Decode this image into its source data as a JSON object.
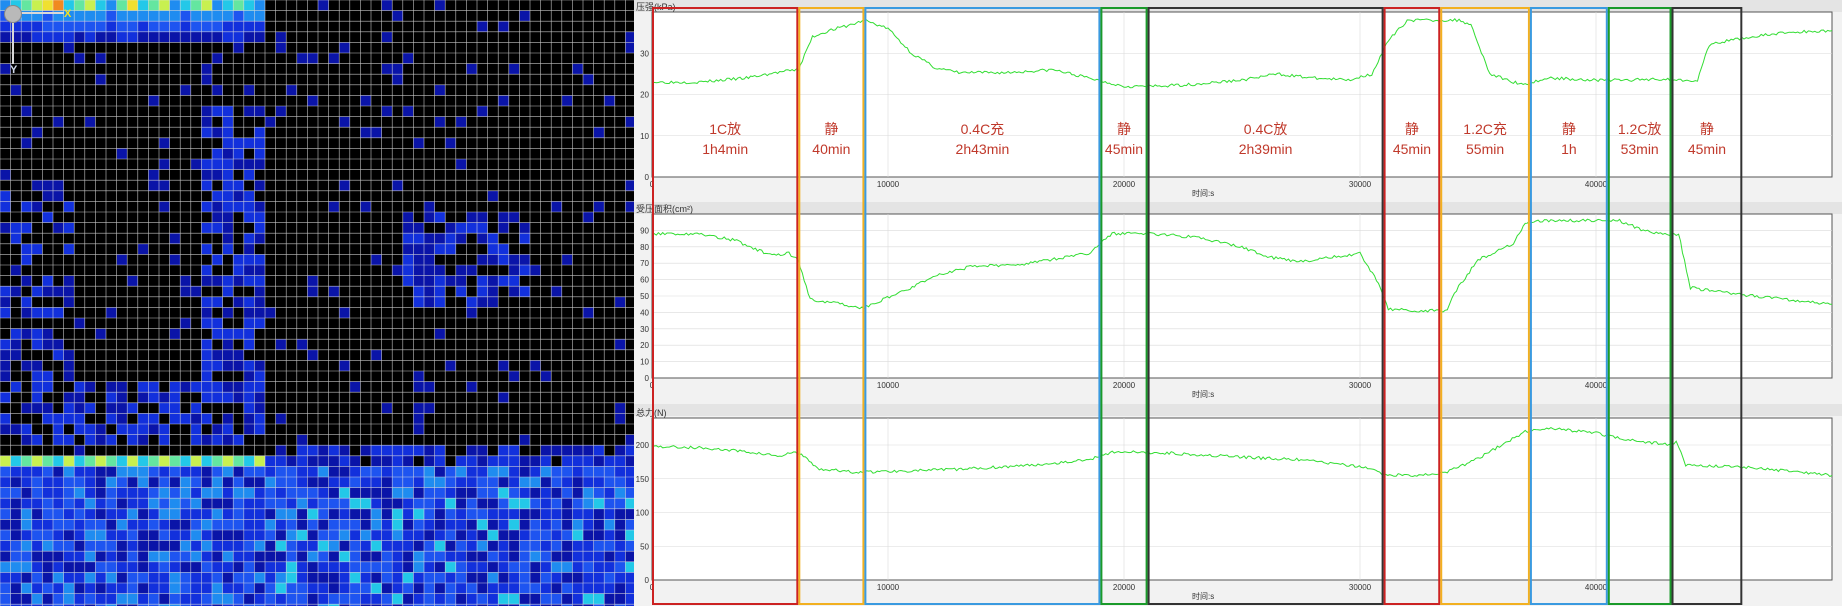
{
  "heatmap": {
    "axis_x_label": "X",
    "axis_y_label": "Y",
    "colors": {
      "empty": "#000000",
      "grid": "#e6e6e6",
      "scale": [
        "#0a14a8",
        "#1230dc",
        "#1e54f0",
        "#1f8cf0",
        "#23c8e8",
        "#64e6a0",
        "#c8f050",
        "#f0e030",
        "#f08a20"
      ]
    }
  },
  "chart_data": [
    {
      "type": "line",
      "title": "压强(kPa)",
      "xlabel": "时间:s",
      "xlim": [
        0,
        50000
      ],
      "ylim": [
        0,
        40
      ],
      "xticks": [
        10000,
        20000,
        30000,
        40000
      ],
      "xtick_labels": [
        "10000",
        "20000",
        "30000",
        "40000"
      ],
      "yticks": [
        0,
        10,
        20,
        30
      ],
      "ytick_labels": [
        "0",
        "10",
        "20",
        "30"
      ],
      "grid": true,
      "line_color": "#33dd33",
      "x": [
        0,
        2000,
        4000,
        5500,
        6200,
        6800,
        7500,
        8500,
        9000,
        10000,
        11000,
        12000,
        13000,
        15000,
        17000,
        18500,
        20000,
        21500,
        23000,
        25000,
        26500,
        28000,
        29500,
        30500,
        31200,
        32000,
        33000,
        34200,
        34700,
        35500,
        36500,
        37000,
        38000,
        40000,
        41500,
        42500,
        43500,
        44300,
        44800,
        46000,
        48000,
        50000
      ],
      "y": [
        23,
        23,
        24,
        25.5,
        26,
        34,
        35.5,
        37,
        38,
        36,
        30,
        26.5,
        25.3,
        25.3,
        26,
        24,
        22,
        22,
        22.5,
        23.5,
        25,
        24,
        23.5,
        25,
        33,
        38,
        38,
        38,
        37,
        25,
        23,
        22.5,
        24,
        23.5,
        23.5,
        23.8,
        23.5,
        23.5,
        32,
        33.5,
        35,
        35.5
      ]
    },
    {
      "type": "line",
      "title": "受压面积(cm²)",
      "xlabel": "时间:s",
      "xlim": [
        0,
        50000
      ],
      "ylim": [
        0,
        100
      ],
      "xticks": [
        10000,
        20000,
        30000,
        40000
      ],
      "xtick_labels": [
        "10000",
        "20000",
        "30000",
        "40000"
      ],
      "yticks": [
        0,
        10,
        20,
        30,
        40,
        50,
        60,
        70,
        80,
        90
      ],
      "ytick_labels": [
        "0",
        "10",
        "20",
        "30",
        "40",
        "50",
        "60",
        "70",
        "80",
        "90"
      ],
      "grid": true,
      "line_color": "#33dd33",
      "x": [
        0,
        2000,
        3500,
        5000,
        5800,
        6200,
        6700,
        7600,
        8800,
        9000,
        10500,
        12000,
        13500,
        15500,
        18500,
        19500,
        21000,
        23000,
        25000,
        26000,
        27500,
        29000,
        30000,
        30700,
        31200,
        32500,
        33700,
        34000,
        35000,
        36500,
        37000,
        38000,
        40000,
        41000,
        42000,
        43200,
        43500,
        44000,
        46000,
        48000,
        50000
      ],
      "y": [
        88,
        88,
        84,
        75,
        76,
        72,
        48,
        46,
        43,
        43,
        52,
        62,
        68,
        69,
        76,
        88,
        88,
        86,
        80,
        74,
        71,
        74,
        76,
        60,
        42,
        41,
        41,
        52,
        72,
        82,
        95,
        96,
        96,
        96,
        90,
        87,
        88,
        55,
        51,
        48,
        45
      ]
    },
    {
      "type": "line",
      "title": "总力(N)",
      "xlabel": "时间:s",
      "xlim": [
        0,
        50000
      ],
      "ylim": [
        0,
        240
      ],
      "xticks": [
        10000,
        20000,
        30000,
        40000
      ],
      "xtick_labels": [
        "10000",
        "20000",
        "30000",
        "40000"
      ],
      "yticks": [
        0,
        50,
        100,
        150,
        200
      ],
      "ytick_labels": [
        "0",
        "50",
        "100",
        "150",
        "200"
      ],
      "grid": true,
      "line_color": "#33dd33",
      "x": [
        0,
        2000,
        4000,
        5500,
        6000,
        6500,
        7000,
        8500,
        9000,
        11000,
        13000,
        16000,
        18500,
        19500,
        22000,
        25000,
        27500,
        29000,
        30500,
        31000,
        32500,
        33700,
        35000,
        36000,
        37000,
        38000,
        40000,
        41000,
        42000,
        43200,
        43400,
        43800,
        46000,
        48000,
        50000
      ],
      "y": [
        198,
        196,
        190,
        183,
        190,
        182,
        165,
        160,
        160,
        162,
        164,
        170,
        178,
        190,
        188,
        182,
        178,
        172,
        165,
        156,
        155,
        160,
        180,
        200,
        220,
        225,
        218,
        210,
        205,
        200,
        206,
        170,
        168,
        162,
        155
      ]
    }
  ],
  "phases": [
    {
      "label_line1": "1C放",
      "label_line2": "1h4min",
      "start": 0,
      "end": 6200,
      "color": "#cc2222"
    },
    {
      "label_line1": "静",
      "label_line2": "40min",
      "start": 6200,
      "end": 9000,
      "color": "#f2b020"
    },
    {
      "label_line1": "0.4C充",
      "label_line2": "2h43min",
      "start": 9000,
      "end": 19000,
      "color": "#3a9ae0"
    },
    {
      "label_line1": "静",
      "label_line2": "45min",
      "start": 19000,
      "end": 21000,
      "color": "#1a9a2a"
    },
    {
      "label_line1": "0.4C放",
      "label_line2": "2h39min",
      "start": 21000,
      "end": 31000,
      "color": "#333333"
    },
    {
      "label_line1": "静",
      "label_line2": "45min",
      "start": 31000,
      "end": 33400,
      "color": "#cc2222"
    },
    {
      "label_line1": "1.2C充",
      "label_line2": "55min",
      "start": 33400,
      "end": 37200,
      "color": "#f2b020"
    },
    {
      "label_line1": "静",
      "label_line2": "1h",
      "start": 37200,
      "end": 40500,
      "color": "#3a9ae0"
    },
    {
      "label_line1": "1.2C放",
      "label_line2": "53min",
      "start": 40500,
      "end": 43200,
      "color": "#1a9a2a"
    },
    {
      "label_line1": "静",
      "label_line2": "45min",
      "start": 43200,
      "end": 46200,
      "color": "#333333"
    }
  ],
  "phase_label_color": "#c0392b"
}
